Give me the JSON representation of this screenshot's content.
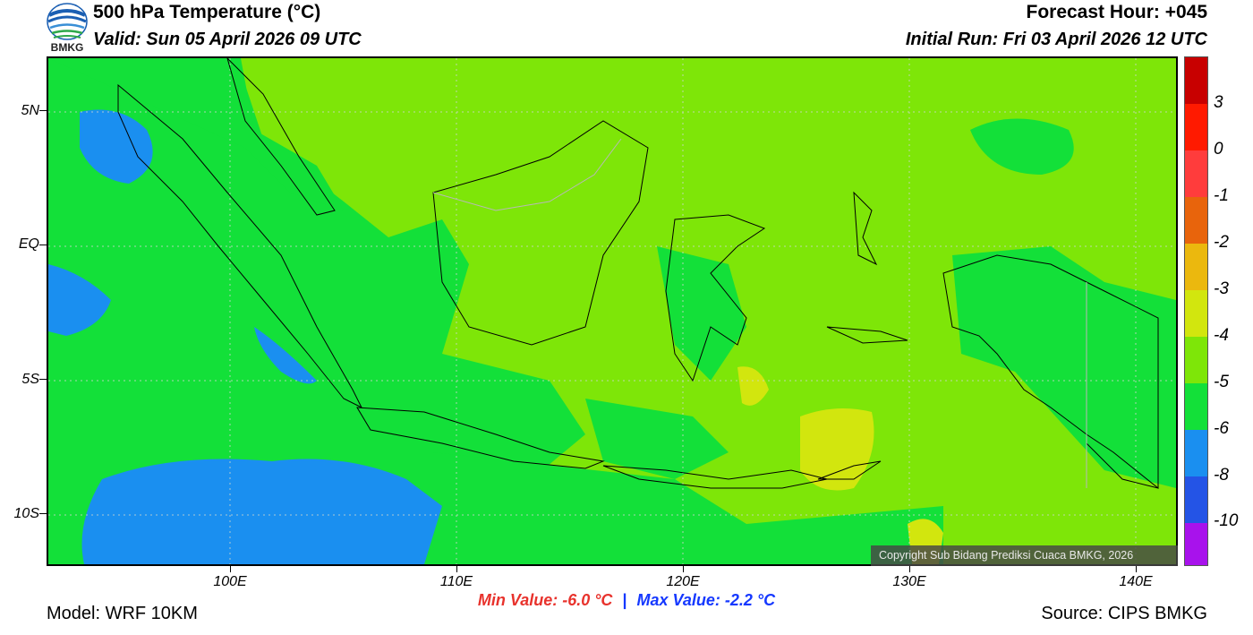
{
  "header": {
    "title": "500 hPa Temperature (°C)",
    "valid": "Valid: Sun 05 April 2026 09 UTC",
    "forecast_hour": "Forecast Hour: +045",
    "initial_run": "Initial Run: Fri 03 April 2026 12 UTC"
  },
  "logo": {
    "text": "BMKG",
    "icon": "bmkg-logo-icon"
  },
  "axes": {
    "y_labels": [
      "5N",
      "EQ",
      "5S",
      "10S"
    ],
    "x_labels": [
      "100E",
      "110E",
      "120E",
      "130E",
      "140E"
    ]
  },
  "colorbar": {
    "labels": [
      "3",
      "0",
      "-1",
      "-2",
      "-3",
      "-4",
      "-5",
      "-6",
      "-8",
      "-10"
    ],
    "colors": [
      "#c80000",
      "#ff1a00",
      "#ff3c3c",
      "#e8640c",
      "#ebb80e",
      "#d2e60e",
      "#7ee608",
      "#13e039",
      "#1a8ff0",
      "#2454e6",
      "#a812ec",
      "#a00060"
    ]
  },
  "colors": {
    "level_minus3": "#7ee608",
    "level_minus4": "#13e039",
    "level_minus5": "#1a8ff0",
    "level_minus2": "#d2e60e"
  },
  "copyright": "Copyright Sub Bidang Prediksi Cuaca BMKG, 2026",
  "stats": {
    "min": "Min Value: -6.0 °C",
    "separator": "|",
    "max": "Max Value: -2.2 °C"
  },
  "footer": {
    "model": "Model: WRF 10KM",
    "source": "Source: CIPS BMKG"
  }
}
